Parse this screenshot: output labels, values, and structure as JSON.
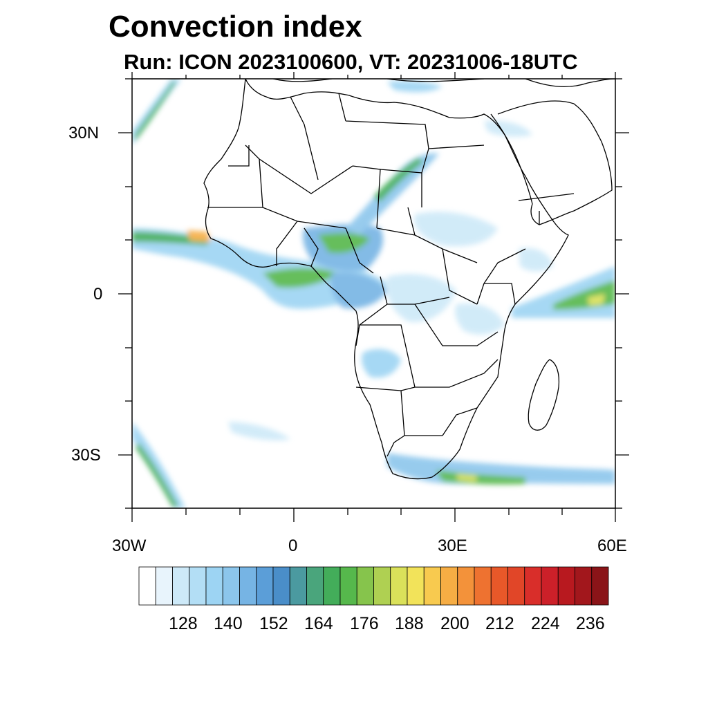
{
  "title": "Convection index",
  "subtitle": "Run: ICON 2023100600,  VT: 20231006-18UTC",
  "axes": {
    "lat_labels": [
      "30N",
      "0",
      "30S"
    ],
    "lon_labels": [
      "30W",
      "0",
      "30E",
      "60E"
    ]
  },
  "colorbar": {
    "tick_labels": [
      "128",
      "140",
      "152",
      "164",
      "176",
      "188",
      "200",
      "212",
      "224",
      "236"
    ],
    "colors": [
      "#ffffff",
      "#e8f4fc",
      "#cde9f8",
      "#b3def5",
      "#9dd4f3",
      "#8cc6ec",
      "#76b4e4",
      "#5b9ed8",
      "#4a8ec9",
      "#4b9aa0",
      "#4aa57c",
      "#43ad5a",
      "#56b84c",
      "#86c44c",
      "#afd052",
      "#dae15a",
      "#f2e35a",
      "#f8ca4f",
      "#f6ad44",
      "#f3923a",
      "#ee7230",
      "#e85829",
      "#e14628",
      "#d92e2a",
      "#cc2029",
      "#b8191f",
      "#a2171c",
      "#8a1418"
    ]
  },
  "icons": {
    "map": "africa-convection-map"
  }
}
